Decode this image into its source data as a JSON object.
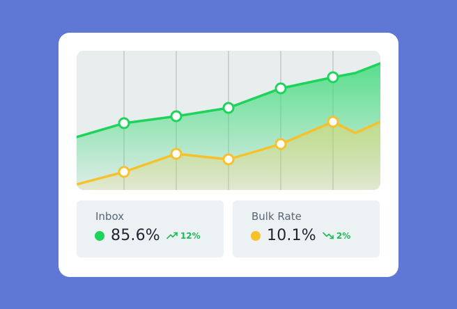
{
  "colors": {
    "inbox": "#1ed35a",
    "bulk": "#f7c12c",
    "trend": "#1db954",
    "grid": "#c3c9cc"
  },
  "chart_data": {
    "type": "area",
    "title": "",
    "xlabel": "",
    "ylabel": "",
    "grid": true,
    "legend": "none",
    "x": [
      0,
      1,
      2,
      3,
      4,
      5,
      6,
      7
    ],
    "ylim": [
      0,
      100
    ],
    "marker_indices": [
      1,
      2,
      3,
      4,
      5
    ],
    "series": [
      {
        "name": "Inbox",
        "color": "#1ed35a",
        "values": [
          38,
          48,
          53,
          59,
          73,
          81,
          84,
          91
        ]
      },
      {
        "name": "Bulk Rate",
        "color": "#f7c12c",
        "values": [
          4,
          13,
          26,
          22,
          33,
          49,
          41,
          49
        ]
      }
    ]
  },
  "stats": {
    "inbox": {
      "label": "Inbox",
      "value": "85.6%",
      "trend": "12%",
      "trend_dir": "up"
    },
    "bulk": {
      "label": "Bulk Rate",
      "value": "10.1%",
      "trend": "2%",
      "trend_dir": "down"
    }
  }
}
